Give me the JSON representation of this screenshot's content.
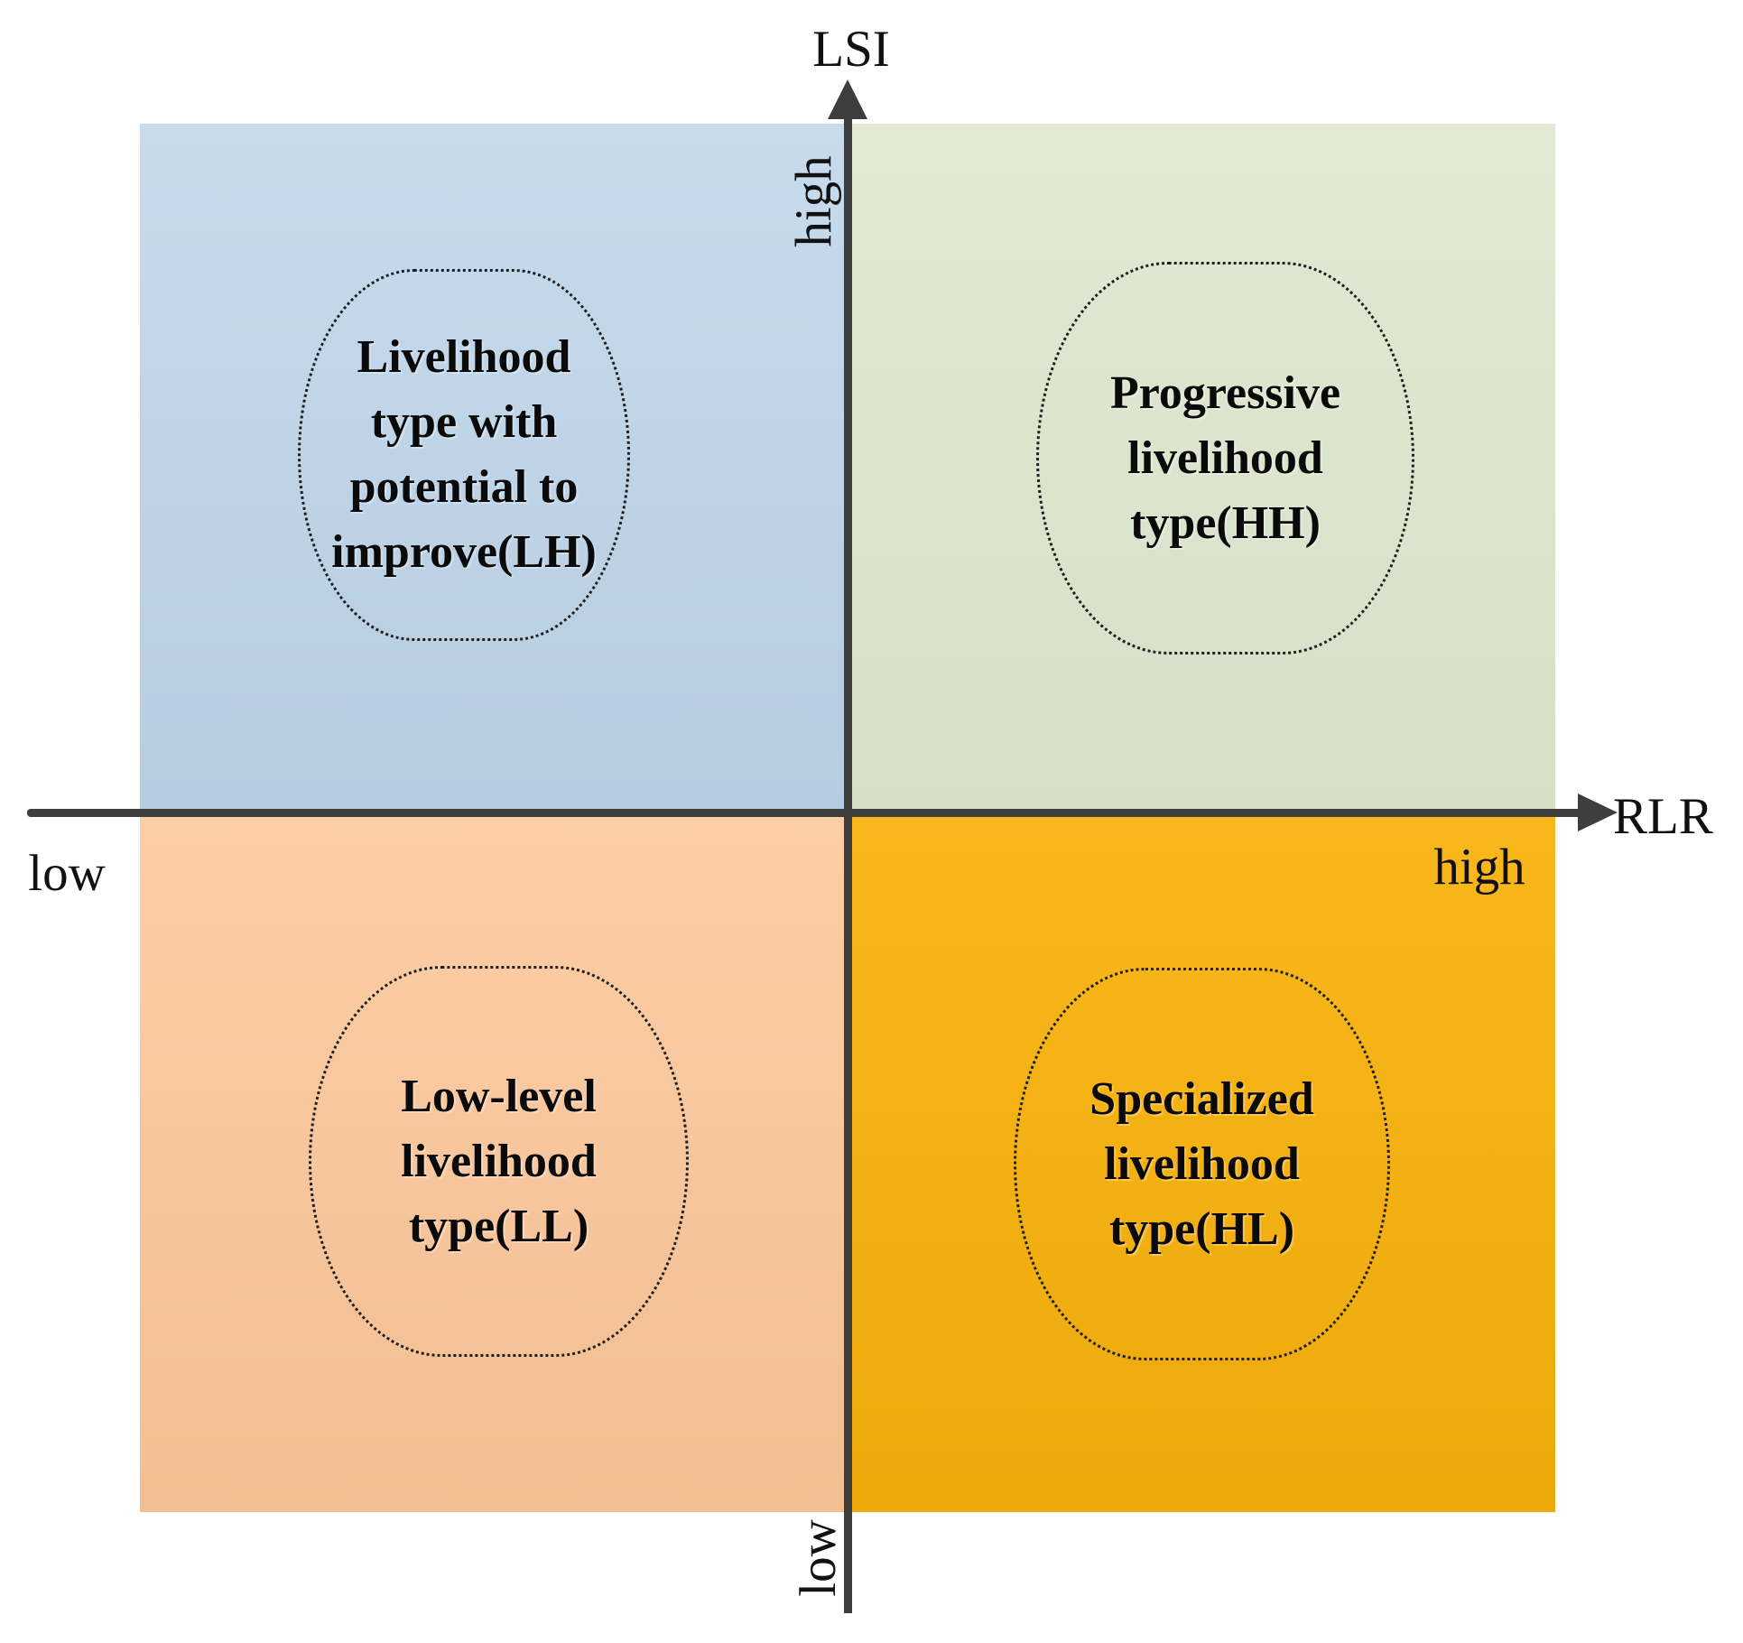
{
  "figure": {
    "y_axis": {
      "title": "LSI",
      "high_label": "high",
      "low_label": "low"
    },
    "x_axis": {
      "title": "RLR",
      "high_label": "high",
      "low_label": "low"
    },
    "quadrants": {
      "lh": {
        "position": "top-left",
        "code": "LH",
        "label": "Livelihood\ntype with\npotential to\nimprove(LH)",
        "color": "#c0d7ea"
      },
      "hh": {
        "position": "top-right",
        "code": "HH",
        "label": "Progressive\nlivelihood\ntype(HH)",
        "color": "#dfe7d0"
      },
      "ll": {
        "position": "bottom-left",
        "code": "LL",
        "label": "Low-level\nlivelihood\ntype(LL)",
        "color": "#fcc79a"
      },
      "hl": {
        "position": "bottom-right",
        "code": "HL",
        "label": "Specialized\nlivelihood\ntype(HL)",
        "color": "#f8b20b"
      }
    },
    "colors": {
      "axis": "#3e3e3e",
      "label_text": "#111111",
      "bubble_outline": "#1f1f1f"
    }
  }
}
